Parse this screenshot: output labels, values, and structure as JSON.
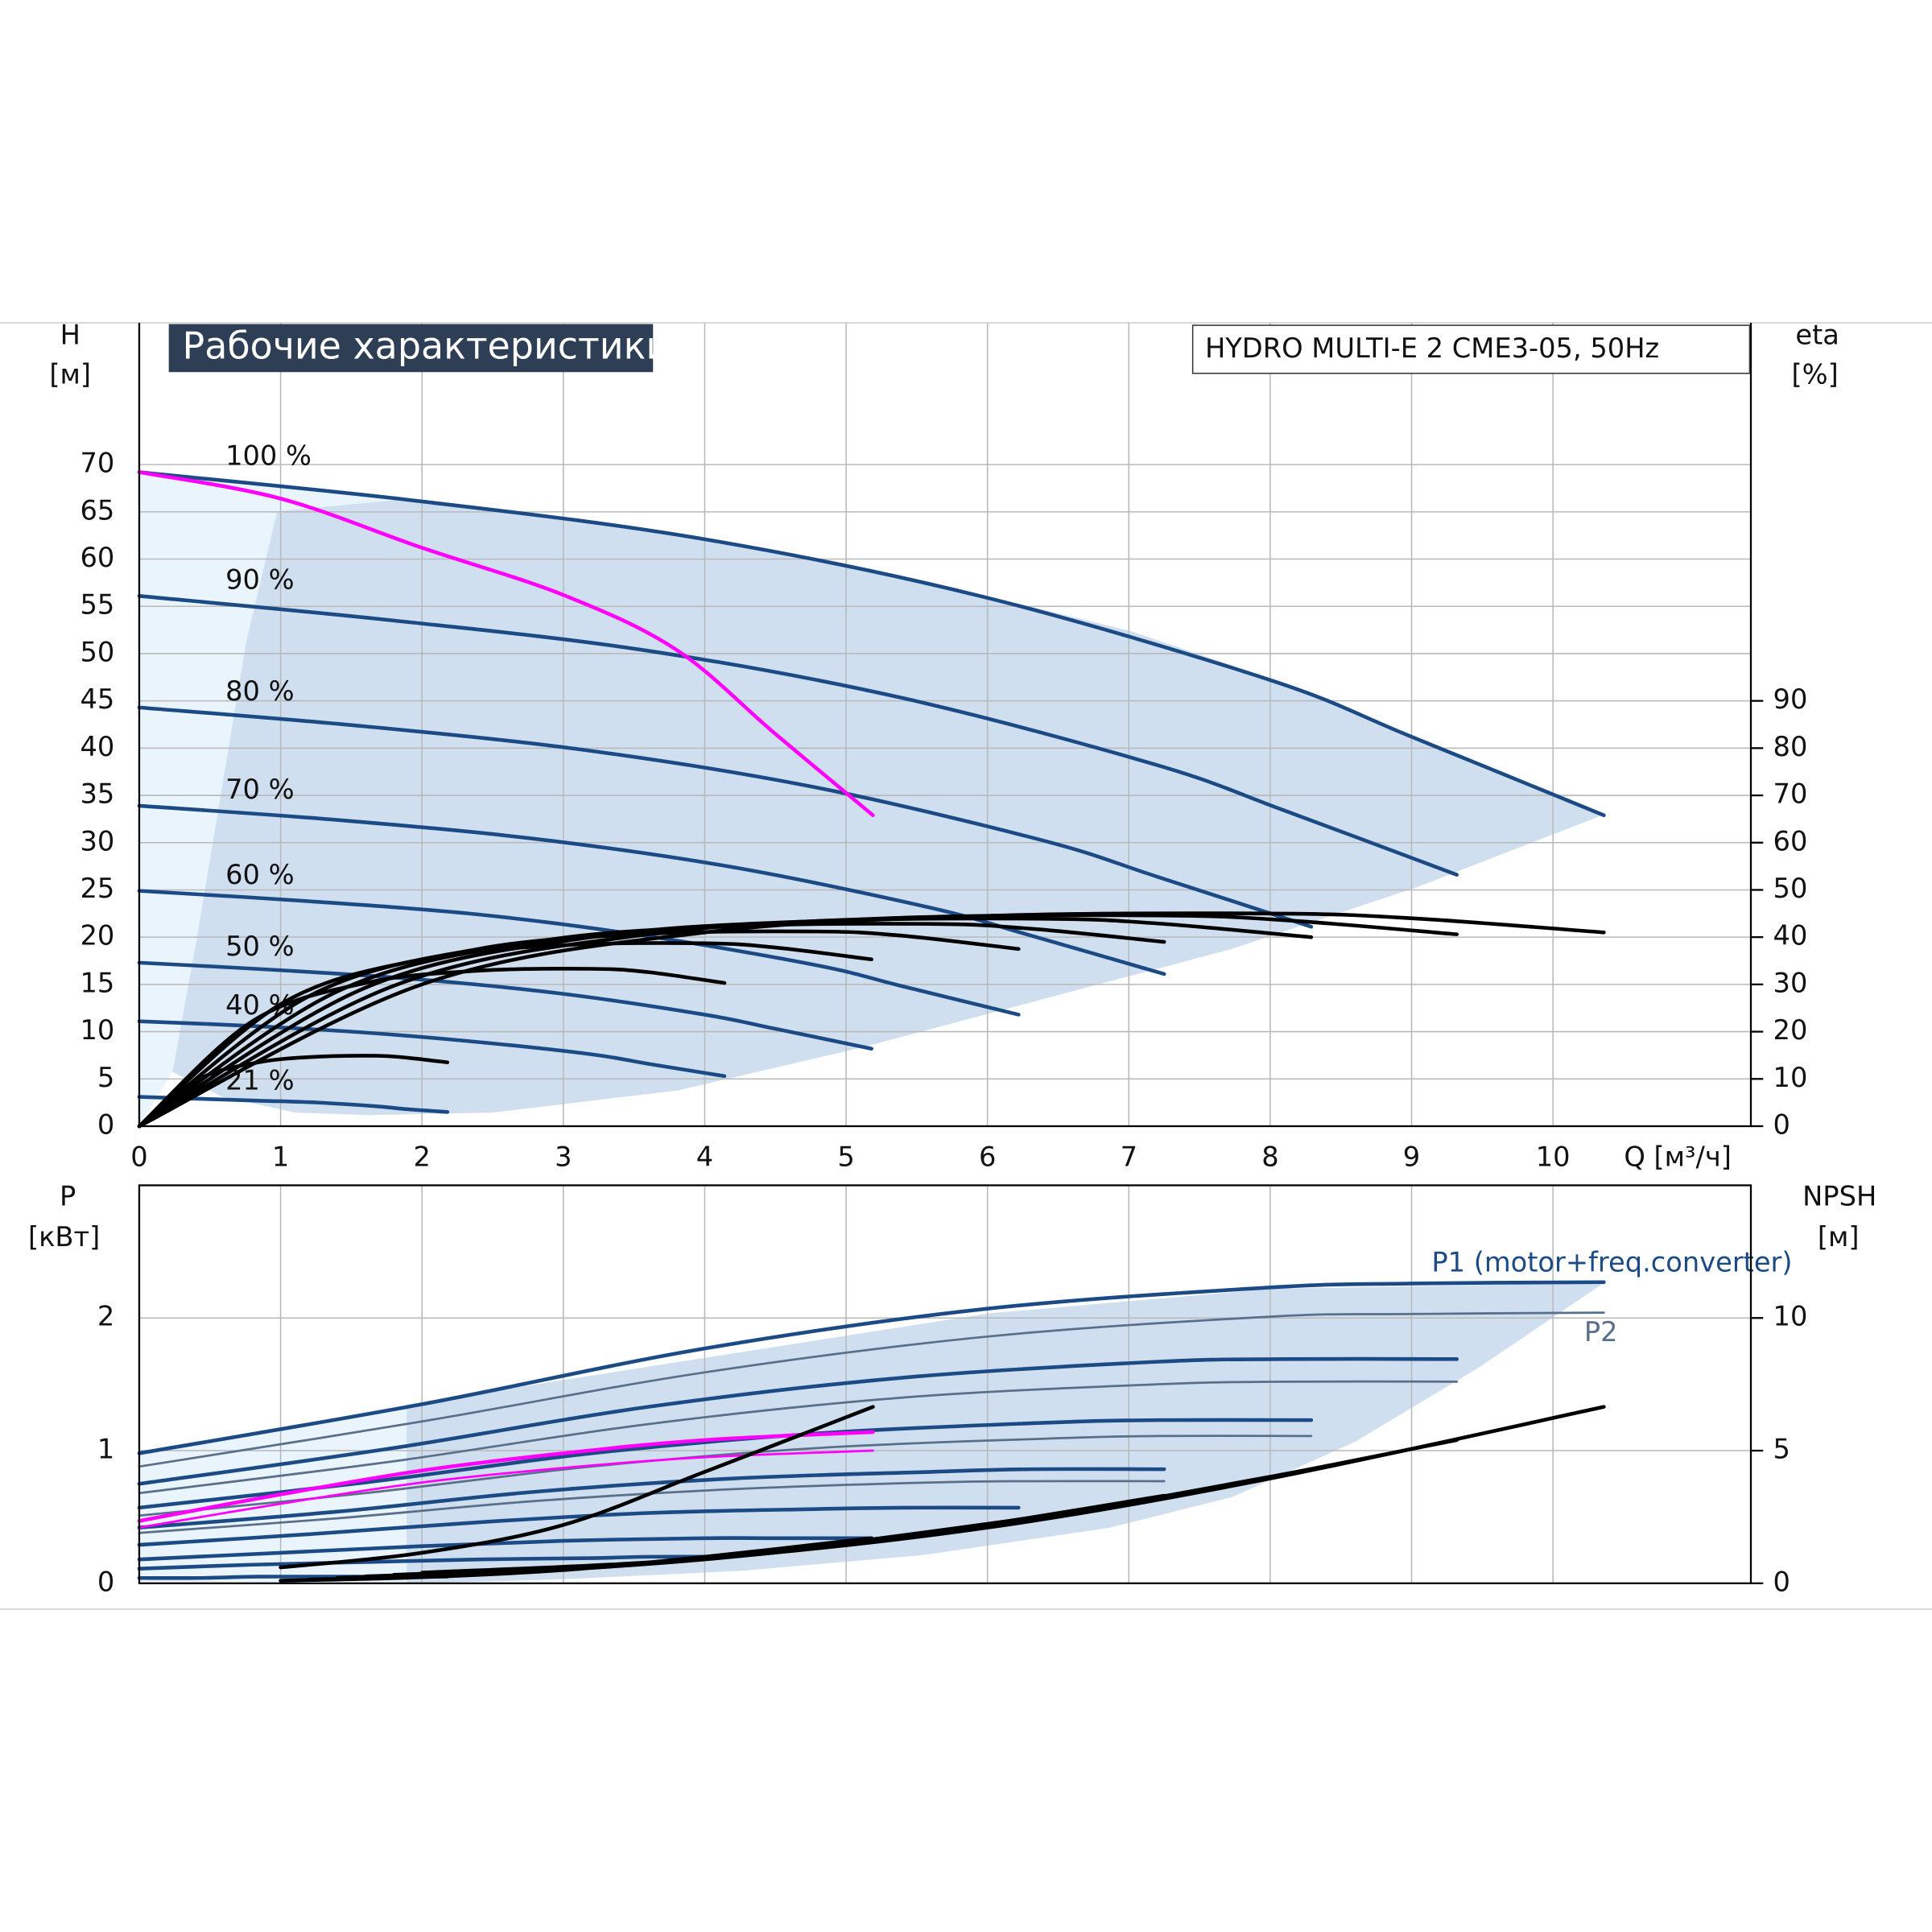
{
  "chart_data": [
    {
      "type": "line",
      "title": "Рабочие характеристики",
      "subtitle": "HYDRO MULTI-E 2 CME3-05, 50Hz",
      "x_label": "Q [м³/ч]",
      "y_label": "H",
      "y_unit": "[м]",
      "y2_label": "eta",
      "y2_unit": "[%]",
      "xlim": [
        0,
        11.4
      ],
      "xticks": [
        0,
        1,
        2,
        3,
        4,
        5,
        6,
        7,
        8,
        9,
        10
      ],
      "ylim": [
        0,
        85
      ],
      "yticks": [
        0,
        5,
        10,
        15,
        20,
        25,
        30,
        35,
        40,
        45,
        50,
        55,
        60,
        65,
        70
      ],
      "y2lim": [
        0,
        170
      ],
      "y2ticks": [
        0,
        10,
        20,
        30,
        40,
        50,
        60,
        70,
        80,
        90
      ],
      "grid": true,
      "series": [
        {
          "name": "100 %",
          "color": "#1b4a85",
          "x": [
            0,
            2,
            4,
            6,
            8,
            9,
            10.36
          ],
          "values": [
            69.2,
            66.1,
            62.1,
            55.9,
            47.2,
            41.2,
            32.9
          ]
        },
        {
          "name": "90 %",
          "color": "#1b4a85",
          "x": [
            0,
            1.8,
            3.6,
            5.4,
            7.2,
            8.1,
            9.32
          ],
          "values": [
            56.1,
            53.5,
            50.3,
            45.3,
            38.2,
            33.4,
            26.6
          ]
        },
        {
          "name": "80 %",
          "color": "#1b4a85",
          "x": [
            0,
            1.6,
            3.2,
            4.8,
            6.4,
            7.2,
            8.29
          ],
          "values": [
            44.3,
            42.3,
            39.7,
            35.8,
            30.2,
            26.4,
            21.1
          ]
        },
        {
          "name": "70 %",
          "color": "#1b4a85",
          "x": [
            0,
            1.4,
            2.8,
            4.2,
            5.6,
            6.3,
            7.25
          ],
          "values": [
            33.9,
            32.4,
            30.4,
            27.4,
            23.1,
            20.2,
            16.1
          ]
        },
        {
          "name": "60 %",
          "color": "#1b4a85",
          "x": [
            0,
            1.2,
            2.4,
            3.6,
            4.8,
            5.4,
            6.22
          ],
          "values": [
            24.9,
            23.8,
            22.4,
            20.1,
            17.0,
            14.8,
            11.8
          ]
        },
        {
          "name": "50 %",
          "color": "#1b4a85",
          "x": [
            0,
            1,
            2,
            3,
            4,
            4.5,
            5.18
          ],
          "values": [
            17.3,
            16.5,
            15.5,
            14.0,
            11.8,
            10.3,
            8.2
          ]
        },
        {
          "name": "40 %",
          "color": "#1b4a85",
          "x": [
            0,
            0.8,
            1.6,
            2.4,
            3.2,
            3.6,
            4.14
          ],
          "values": [
            11.1,
            10.6,
            9.9,
            8.9,
            7.6,
            6.6,
            5.3
          ]
        },
        {
          "name": "21 %",
          "color": "#1b4a85",
          "x": [
            0,
            0.42,
            0.84,
            1.26,
            1.68,
            1.89,
            2.18
          ],
          "values": [
            3.1,
            2.9,
            2.7,
            2.5,
            2.1,
            1.8,
            1.5
          ]
        },
        {
          "color": "#ff00ff",
          "x": [
            0,
            1,
            2,
            3,
            3.8,
            4.5,
            5.19
          ],
          "values": [
            69.2,
            66.4,
            61.2,
            56.2,
            50.4,
            41.5,
            32.9
          ]
        },
        {
          "color": "#000000",
          "axis": "y2",
          "x": [
            0,
            2,
            4,
            6,
            8,
            9,
            10.36
          ],
          "values": [
            0,
            30,
            41,
            44.5,
            45,
            44,
            41
          ]
        },
        {
          "color": "#000000",
          "axis": "y2",
          "x": [
            0,
            1.8,
            3.6,
            5.4,
            7.2,
            8.1,
            9.32
          ],
          "values": [
            0,
            29.7,
            40.6,
            44.1,
            44.6,
            43.6,
            40.6
          ]
        },
        {
          "color": "#000000",
          "axis": "y2",
          "x": [
            0,
            1.6,
            3.2,
            4.8,
            6.4,
            7.2,
            8.29
          ],
          "values": [
            0,
            29.3,
            40,
            43.4,
            43.9,
            42.9,
            40
          ]
        },
        {
          "color": "#000000",
          "axis": "y2",
          "x": [
            0,
            1.4,
            2.8,
            4.2,
            5.6,
            6.3,
            7.25
          ],
          "values": [
            0,
            28.5,
            39,
            42.3,
            42.8,
            41.8,
            39
          ]
        },
        {
          "color": "#000000",
          "axis": "y2",
          "x": [
            0,
            1.2,
            2.4,
            3.6,
            4.8,
            5.4,
            6.22
          ],
          "values": [
            0,
            27.5,
            37.5,
            40.7,
            41.2,
            40.3,
            37.5
          ]
        },
        {
          "color": "#000000",
          "axis": "y2",
          "x": [
            0,
            1,
            2,
            3,
            4,
            4.5,
            5.18
          ],
          "values": [
            0,
            25.8,
            35.3,
            38.3,
            38.7,
            37.8,
            35.3
          ]
        },
        {
          "color": "#000000",
          "axis": "y2",
          "x": [
            0,
            0.8,
            1.6,
            2.4,
            3.2,
            3.6,
            4.14
          ],
          "values": [
            0,
            22.2,
            30.3,
            32.9,
            33.3,
            32.6,
            30.3
          ]
        },
        {
          "color": "#000000",
          "axis": "y2",
          "x": [
            0,
            0.42,
            0.84,
            1.26,
            1.68,
            1.89,
            2.18
          ],
          "values": [
            0,
            9.9,
            13.5,
            14.7,
            14.9,
            14.5,
            13.5
          ]
        }
      ]
    },
    {
      "type": "line",
      "y_label": "P",
      "y_unit": "[кВт]",
      "y2_label": "NPSH",
      "y2_unit": "[м]",
      "ylim": [
        0,
        3
      ],
      "yticks": [
        0,
        1,
        2
      ],
      "y2lim": [
        0,
        15
      ],
      "y2ticks": [
        0,
        5,
        10
      ],
      "grid": true,
      "series": [
        {
          "name": "P1 (motor+freq.converter)",
          "color": "#1b4a85",
          "x": [
            0,
            2,
            4,
            6,
            8,
            9,
            10.36
          ],
          "values": [
            0.98,
            1.35,
            1.77,
            2.07,
            2.23,
            2.26,
            2.27
          ]
        },
        {
          "name": "P2",
          "color": "#5a6f8a",
          "x": [
            0,
            2,
            4,
            6,
            8,
            9,
            10.36
          ],
          "values": [
            0.88,
            1.22,
            1.59,
            1.86,
            2.01,
            2.03,
            2.04
          ]
        },
        {
          "color": "#1b4a85",
          "x": [
            0,
            1.8,
            3.6,
            5.4,
            7.2,
            8.1,
            9.32
          ],
          "values": [
            0.75,
            1.02,
            1.33,
            1.55,
            1.67,
            1.69,
            1.69
          ]
        },
        {
          "color": "#1b4a85",
          "x": [
            0,
            1.6,
            3.2,
            4.8,
            6.4,
            7.2,
            8.29
          ],
          "values": [
            0.57,
            0.76,
            0.98,
            1.13,
            1.21,
            1.23,
            1.23
          ]
        },
        {
          "color": "#1b4a85",
          "x": [
            0,
            1.4,
            2.8,
            4.2,
            5.6,
            6.3,
            7.25
          ],
          "values": [
            0.42,
            0.54,
            0.69,
            0.79,
            0.84,
            0.86,
            0.86
          ]
        },
        {
          "color": "#1b4a85",
          "x": [
            0,
            1.2,
            2.4,
            3.6,
            4.8,
            5.4,
            6.22
          ],
          "values": [
            0.29,
            0.37,
            0.46,
            0.53,
            0.56,
            0.57,
            0.57
          ]
        },
        {
          "color": "#1b4a85",
          "x": [
            0,
            1,
            2,
            3,
            4,
            4.5,
            5.18
          ],
          "values": [
            0.18,
            0.23,
            0.28,
            0.32,
            0.34,
            0.34,
            0.34
          ]
        },
        {
          "color": "#1b4a85",
          "x": [
            0,
            0.8,
            1.6,
            2.4,
            3.2,
            3.6,
            4.14
          ],
          "values": [
            0.11,
            0.14,
            0.16,
            0.18,
            0.19,
            0.2,
            0.2
          ]
        },
        {
          "color": "#1b4a85",
          "x": [
            0,
            0.42,
            0.84,
            1.26,
            1.68,
            1.89,
            2.18
          ],
          "values": [
            0.04,
            0.04,
            0.05,
            0.05,
            0.05,
            0.05,
            0.05
          ]
        },
        {
          "color": "#5a6f8a",
          "x": [
            0,
            1.8,
            3.6,
            5.4,
            7.2,
            8.1,
            9.32
          ],
          "values": [
            0.68,
            0.92,
            1.2,
            1.4,
            1.5,
            1.52,
            1.52
          ]
        },
        {
          "color": "#5a6f8a",
          "x": [
            0,
            1.6,
            3.2,
            4.8,
            6.4,
            7.2,
            8.29
          ],
          "values": [
            0.51,
            0.68,
            0.88,
            1.02,
            1.09,
            1.11,
            1.11
          ]
        },
        {
          "color": "#5a6f8a",
          "x": [
            0,
            1.4,
            2.8,
            4.2,
            5.6,
            6.3,
            7.25
          ],
          "values": [
            0.38,
            0.49,
            0.62,
            0.71,
            0.76,
            0.77,
            0.77
          ]
        },
        {
          "color": "#ff00ff",
          "x": [
            0,
            1,
            2,
            3,
            4,
            5.19
          ],
          "values": [
            0.47,
            0.67,
            0.85,
            0.98,
            1.08,
            1.14
          ]
        },
        {
          "color": "#ff00ff",
          "x": [
            0,
            1,
            2,
            3,
            4,
            5.19
          ],
          "values": [
            0.42,
            0.6,
            0.76,
            0.87,
            0.95,
            1.0
          ]
        },
        {
          "color": "#000000",
          "axis": "y2",
          "x": [
            2,
            4,
            6,
            8,
            10.36
          ],
          "values": [
            0.4,
            0.93,
            2.1,
            3.95,
            6.65
          ]
        },
        {
          "color": "#000000",
          "axis": "y2",
          "x": [
            1.8,
            3.6,
            5.4,
            7.2,
            9.32
          ],
          "values": [
            0.32,
            0.75,
            1.7,
            3.2,
            5.4
          ]
        },
        {
          "color": "#000000",
          "axis": "y2",
          "x": [
            1.6,
            3.2,
            4.8,
            6.4,
            8.29
          ],
          "values": [
            0.26,
            0.6,
            1.35,
            2.5,
            4.3
          ]
        },
        {
          "color": "#000000",
          "axis": "y2",
          "x": [
            1.4,
            2.8,
            4.2,
            5.6,
            7.25
          ],
          "values": [
            0.2,
            0.46,
            1.0,
            1.9,
            3.3
          ]
        },
        {
          "color": "#000000",
          "axis": "y2",
          "x": [
            1.2,
            2.4,
            3.6,
            4.8,
            6.22
          ],
          "values": [
            0.14,
            0.34,
            0.75,
            1.4,
            2.4
          ]
        },
        {
          "color": "#000000",
          "axis": "y2",
          "x": [
            1,
            2,
            3,
            4,
            5.18
          ],
          "values": [
            0.1,
            0.23,
            0.5,
            1.0,
            1.7
          ]
        },
        {
          "color": "#000000",
          "axis": "y2",
          "x": [
            1,
            2,
            3,
            4,
            5.19
          ],
          "values": [
            0.6,
            1.15,
            2.2,
            4.2,
            6.65
          ]
        }
      ]
    }
  ]
}
